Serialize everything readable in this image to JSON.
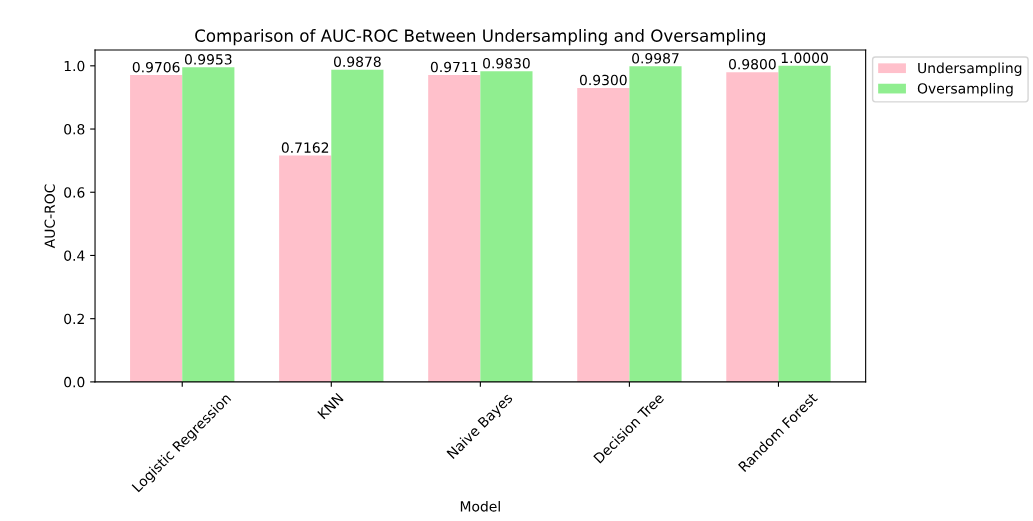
{
  "chart_data": {
    "type": "bar",
    "title": "Comparison of AUC-ROC Between Undersampling and Oversampling",
    "xlabel": "Model",
    "ylabel": "AUC-ROC",
    "categories": [
      "Logistic Regression",
      "KNN",
      "Naive Bayes",
      "Decision Tree",
      "Random Forest"
    ],
    "series": [
      {
        "name": "Undersampling",
        "color": "#ffc0cb",
        "values": [
          0.9706,
          0.7162,
          0.9711,
          0.93,
          0.98
        ],
        "value_labels": [
          "0.9706",
          "0.7162",
          "0.9711",
          "0.9300",
          "0.9800"
        ]
      },
      {
        "name": "Oversampling",
        "color": "#90ee90",
        "values": [
          0.9953,
          0.9878,
          0.983,
          0.9987,
          1.0
        ],
        "value_labels": [
          "0.9953",
          "0.9878",
          "0.9830",
          "0.9987",
          "1.0000"
        ]
      }
    ],
    "ylim": [
      0,
      1.05
    ],
    "yticks": [
      {
        "value": 0,
        "label": "0.0"
      },
      {
        "value": 0.2,
        "label": "0.2"
      },
      {
        "value": 0.4,
        "label": "0.4"
      },
      {
        "value": 0.6,
        "label": "0.6"
      },
      {
        "value": 0.8,
        "label": "0.8"
      },
      {
        "value": 1.0,
        "label": "1.0"
      }
    ],
    "legend": "top right",
    "grid": false
  }
}
